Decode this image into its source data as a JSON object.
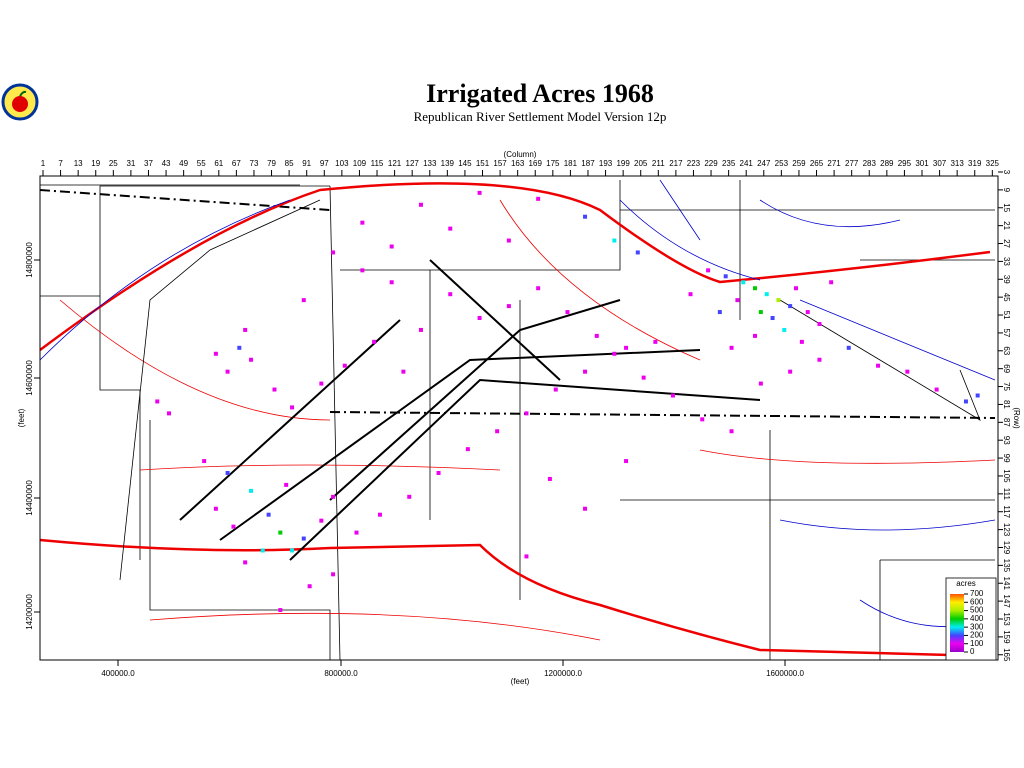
{
  "header": {
    "title": "Irrigated Acres 1968",
    "subtitle": "Republican River Settlement Model Version 12p"
  },
  "axes": {
    "column": {
      "label": "(Column)",
      "ticks": [
        1,
        7,
        13,
        19,
        25,
        31,
        37,
        43,
        49,
        55,
        61,
        67,
        73,
        79,
        85,
        91,
        97,
        103,
        109,
        115,
        121,
        127,
        133,
        139,
        145,
        151,
        157,
        163,
        169,
        175,
        181,
        187,
        193,
        199,
        205,
        211,
        217,
        223,
        229,
        235,
        241,
        247,
        253,
        259,
        265,
        271,
        277,
        283,
        289,
        295,
        301,
        307,
        313,
        319,
        325
      ]
    },
    "row": {
      "label": "(Row)",
      "ticks": [
        3,
        9,
        15,
        21,
        27,
        33,
        39,
        45,
        51,
        57,
        63,
        69,
        75,
        81,
        87,
        93,
        99,
        105,
        111,
        117,
        123,
        129,
        135,
        141,
        147,
        153,
        159,
        165
      ]
    },
    "x_feet": {
      "label": "(feet)",
      "ticks": [
        "400000.0",
        "800000.0",
        "1200000.0",
        "1600000.0"
      ]
    },
    "y_feet": {
      "label": "(feet)",
      "ticks": [
        "14800000",
        "14600000",
        "14400000",
        "14200000"
      ]
    }
  },
  "legend": {
    "title": "acres",
    "ticks": [
      0,
      100,
      200,
      300,
      400,
      500,
      600,
      700
    ],
    "colors": [
      "#9900cc",
      "#ee00ee",
      "#4444ff",
      "#00eeee",
      "#00cc00",
      "#aaee00",
      "#ffee00",
      "#ff5500"
    ]
  },
  "cells": [
    [
      240,
      40,
      300
    ],
    [
      244,
      42,
      450
    ],
    [
      248,
      44,
      350
    ],
    [
      252,
      46,
      500
    ],
    [
      256,
      48,
      250
    ],
    [
      238,
      46,
      150
    ],
    [
      246,
      50,
      400
    ],
    [
      250,
      52,
      200
    ],
    [
      258,
      42,
      150
    ],
    [
      262,
      50,
      100
    ],
    [
      234,
      38,
      250
    ],
    [
      228,
      36,
      150
    ],
    [
      222,
      44,
      100
    ],
    [
      266,
      54,
      150
    ],
    [
      270,
      40,
      100
    ],
    [
      232,
      50,
      200
    ],
    [
      254,
      56,
      300
    ],
    [
      244,
      58,
      150
    ],
    [
      260,
      60,
      100
    ],
    [
      236,
      62,
      100
    ],
    [
      210,
      60,
      100
    ],
    [
      200,
      62,
      150
    ],
    [
      190,
      58,
      100
    ],
    [
      180,
      50,
      100
    ],
    [
      170,
      42,
      100
    ],
    [
      160,
      48,
      100
    ],
    [
      150,
      52,
      150
    ],
    [
      140,
      44,
      100
    ],
    [
      130,
      56,
      100
    ],
    [
      120,
      40,
      100
    ],
    [
      110,
      36,
      100
    ],
    [
      100,
      30,
      100
    ],
    [
      90,
      46,
      100
    ],
    [
      70,
      56,
      150
    ],
    [
      68,
      62,
      250
    ],
    [
      72,
      66,
      100
    ],
    [
      64,
      70,
      100
    ],
    [
      60,
      64,
      100
    ],
    [
      80,
      76,
      100
    ],
    [
      86,
      82,
      100
    ],
    [
      96,
      74,
      150
    ],
    [
      104,
      68,
      100
    ],
    [
      114,
      60,
      100
    ],
    [
      124,
      70,
      100
    ],
    [
      56,
      100,
      150
    ],
    [
      64,
      104,
      200
    ],
    [
      72,
      110,
      300
    ],
    [
      78,
      118,
      250
    ],
    [
      82,
      124,
      400
    ],
    [
      86,
      130,
      350
    ],
    [
      90,
      126,
      200
    ],
    [
      96,
      120,
      150
    ],
    [
      76,
      130,
      300
    ],
    [
      70,
      134,
      150
    ],
    [
      66,
      122,
      100
    ],
    [
      60,
      116,
      100
    ],
    [
      100,
      112,
      100
    ],
    [
      108,
      124,
      100
    ],
    [
      116,
      118,
      100
    ],
    [
      126,
      112,
      100
    ],
    [
      136,
      104,
      100
    ],
    [
      146,
      96,
      100
    ],
    [
      156,
      90,
      100
    ],
    [
      166,
      84,
      150
    ],
    [
      176,
      76,
      100
    ],
    [
      186,
      70,
      100
    ],
    [
      196,
      64,
      100
    ],
    [
      206,
      72,
      100
    ],
    [
      216,
      78,
      100
    ],
    [
      226,
      86,
      150
    ],
    [
      236,
      90,
      100
    ],
    [
      246,
      74,
      100
    ],
    [
      256,
      70,
      150
    ],
    [
      266,
      66,
      100
    ],
    [
      276,
      62,
      200
    ],
    [
      286,
      68,
      100
    ],
    [
      296,
      70,
      150
    ],
    [
      306,
      76,
      100
    ],
    [
      316,
      80,
      200
    ],
    [
      320,
      78,
      250
    ],
    [
      110,
      20,
      100
    ],
    [
      130,
      14,
      100
    ],
    [
      150,
      10,
      100
    ],
    [
      170,
      12,
      150
    ],
    [
      186,
      18,
      250
    ],
    [
      196,
      26,
      300
    ],
    [
      204,
      30,
      200
    ],
    [
      160,
      26,
      100
    ],
    [
      140,
      22,
      100
    ],
    [
      120,
      28,
      100
    ],
    [
      40,
      80,
      150
    ],
    [
      44,
      84,
      100
    ],
    [
      82,
      150,
      100
    ],
    [
      92,
      142,
      100
    ],
    [
      100,
      138,
      100
    ],
    [
      84,
      108,
      150
    ],
    [
      174,
      106,
      100
    ],
    [
      186,
      116,
      100
    ],
    [
      200,
      100,
      100
    ],
    [
      166,
      132,
      100
    ]
  ]
}
